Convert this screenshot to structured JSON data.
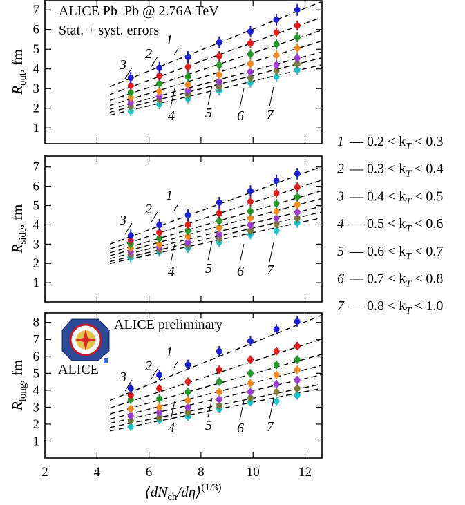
{
  "chart_data": [
    {
      "type": "scatter",
      "ylabel": [
        "R",
        "out",
        ", fm"
      ],
      "annotations": [
        "ALICE Pb–Pb @ 2.76A TeV",
        "Stat. + syst. errors"
      ],
      "xlim": [
        2,
        12.65
      ],
      "xticks": [
        2,
        4,
        6,
        8,
        10,
        12
      ],
      "ylim": [
        0.2,
        7.5
      ],
      "yticks": [
        1,
        2,
        3,
        4,
        5,
        6,
        7
      ],
      "x": [
        5.3,
        6.4,
        7.5,
        8.7,
        9.9,
        10.9,
        11.7
      ],
      "fit_x": [
        4.5,
        12.6
      ],
      "series": [
        {
          "label": "1",
          "name": [
            "— 0.2 < k",
            "T",
            " < 0.3"
          ],
          "color": "#1f1fd6",
          "values": [
            3.55,
            4.05,
            4.6,
            5.35,
            5.9,
            6.5,
            7.0
          ],
          "errors": [
            0.3,
            0.3,
            0.3,
            0.3,
            0.3,
            0.3,
            0.3
          ],
          "fit": [
            3.1,
            7.4
          ]
        },
        {
          "label": "2",
          "name": [
            "— 0.3 < k",
            "T",
            " < 0.4"
          ],
          "color": "#e01b1b",
          "values": [
            3.15,
            3.65,
            4.1,
            4.65,
            5.3,
            5.85,
            6.2
          ],
          "errors": [
            0.25,
            0.25,
            0.25,
            0.25,
            0.25,
            0.25,
            0.25
          ],
          "fit": [
            2.7,
            6.6
          ]
        },
        {
          "label": "3",
          "name": [
            "— 0.4 < k",
            "T",
            " < 0.5"
          ],
          "color": "#22992a",
          "values": [
            2.8,
            3.25,
            3.6,
            4.2,
            4.75,
            5.25,
            5.6
          ],
          "errors": [
            0.25,
            0.25,
            0.25,
            0.25,
            0.25,
            0.25,
            0.25
          ],
          "fit": [
            2.4,
            5.95
          ]
        },
        {
          "label": "4",
          "name": [
            "— 0.5 < k",
            "T",
            " < 0.6"
          ],
          "color": "#f28a1d",
          "values": [
            2.55,
            2.85,
            3.2,
            3.7,
            4.25,
            4.7,
            5.05
          ],
          "errors": [
            0.25,
            0.25,
            0.25,
            0.25,
            0.25,
            0.25,
            0.25
          ],
          "fit": [
            2.15,
            5.4
          ]
        },
        {
          "label": "5",
          "name": [
            "— 0.6 < k",
            "T",
            " < 0.7"
          ],
          "color": "#9a3ed6",
          "values": [
            2.3,
            2.6,
            2.9,
            3.35,
            3.85,
            4.2,
            4.55
          ],
          "errors": [
            0.25,
            0.25,
            0.25,
            0.25,
            0.25,
            0.25,
            0.25
          ],
          "fit": [
            1.95,
            4.85
          ]
        },
        {
          "label": "6",
          "name": [
            "— 0.7 < k",
            "T",
            " < 0.8"
          ],
          "color": "#7a7a3a",
          "values": [
            2.1,
            2.45,
            2.7,
            3.1,
            3.55,
            3.9,
            4.25
          ],
          "errors": [
            0.25,
            0.25,
            0.25,
            0.25,
            0.25,
            0.25,
            0.25
          ],
          "fit": [
            1.8,
            4.55
          ]
        },
        {
          "label": "7",
          "name": [
            "— 0.8 < k",
            "T",
            " < 1.0"
          ],
          "color": "#1cc4c8",
          "values": [
            1.85,
            2.2,
            2.5,
            2.9,
            3.3,
            3.6,
            3.95
          ],
          "errors": [
            0.25,
            0.25,
            0.25,
            0.25,
            0.25,
            0.25,
            0.25
          ],
          "fit": [
            1.65,
            4.2
          ]
        }
      ]
    },
    {
      "type": "scatter",
      "ylabel": [
        "R",
        "side",
        ", fm"
      ],
      "xlim": [
        2,
        12.65
      ],
      "xticks": [
        2,
        4,
        6,
        8,
        10,
        12
      ],
      "ylim": [
        0,
        7.6
      ],
      "yticks": [
        1,
        2,
        3,
        4,
        5,
        6,
        7
      ],
      "x": [
        5.3,
        6.4,
        7.5,
        8.7,
        9.9,
        10.9,
        11.7
      ],
      "fit_x": [
        4.5,
        12.6
      ],
      "series": [
        {
          "label": "1",
          "color": "#1f1fd6",
          "values": [
            3.45,
            4.0,
            4.5,
            5.15,
            5.75,
            6.3,
            6.65
          ],
          "errors": [
            0.3,
            0.3,
            0.3,
            0.3,
            0.3,
            0.3,
            0.3
          ],
          "fit": [
            3.0,
            7.0
          ]
        },
        {
          "label": "2",
          "color": "#e01b1b",
          "values": [
            3.2,
            3.6,
            4.0,
            4.6,
            5.2,
            5.65,
            5.95
          ],
          "errors": [
            0.25,
            0.25,
            0.25,
            0.25,
            0.25,
            0.25,
            0.25
          ],
          "fit": [
            2.75,
            6.3
          ]
        },
        {
          "label": "3",
          "color": "#22992a",
          "values": [
            3.0,
            3.3,
            3.7,
            4.2,
            4.7,
            5.1,
            5.45
          ],
          "errors": [
            0.25,
            0.25,
            0.25,
            0.25,
            0.25,
            0.25,
            0.25
          ],
          "fit": [
            2.55,
            5.75
          ]
        },
        {
          "label": "4",
          "color": "#f28a1d",
          "values": [
            2.8,
            3.0,
            3.4,
            3.85,
            4.35,
            4.7,
            5.05
          ],
          "errors": [
            0.25,
            0.25,
            0.25,
            0.25,
            0.25,
            0.25,
            0.25
          ],
          "fit": [
            2.4,
            5.35
          ]
        },
        {
          "label": "5",
          "color": "#9a3ed6",
          "values": [
            2.6,
            2.85,
            3.1,
            3.5,
            4.0,
            4.35,
            4.65
          ],
          "errors": [
            0.25,
            0.25,
            0.25,
            0.25,
            0.25,
            0.25,
            0.25
          ],
          "fit": [
            2.25,
            4.95
          ]
        },
        {
          "label": "6",
          "color": "#7a7a3a",
          "values": [
            2.45,
            2.7,
            2.95,
            3.3,
            3.7,
            4.05,
            4.35
          ],
          "errors": [
            0.25,
            0.25,
            0.25,
            0.25,
            0.25,
            0.25,
            0.25
          ],
          "fit": [
            2.1,
            4.65
          ]
        },
        {
          "label": "7",
          "color": "#1cc4c8",
          "values": [
            2.3,
            2.6,
            2.8,
            3.1,
            3.5,
            3.7,
            4.1
          ],
          "errors": [
            0.25,
            0.25,
            0.25,
            0.25,
            0.25,
            0.25,
            0.25
          ],
          "fit": [
            2.0,
            4.35
          ]
        }
      ]
    },
    {
      "type": "scatter",
      "ylabel": [
        "R",
        "long",
        ", fm"
      ],
      "xlabel": [
        "⟨dN",
        "ch",
        "/dη⟩",
        "(1/3)"
      ],
      "annotations": [
        "ALICE preliminary",
        "ALICE"
      ],
      "xlim": [
        2,
        12.65
      ],
      "xticks": [
        2,
        4,
        6,
        8,
        10,
        12
      ],
      "ylim": [
        0,
        8.6
      ],
      "yticks": [
        1,
        2,
        3,
        4,
        5,
        6,
        7,
        8
      ],
      "x": [
        5.3,
        6.4,
        7.5,
        8.7,
        9.9,
        10.9,
        11.7
      ],
      "fit_x": [
        4.5,
        12.6
      ],
      "series": [
        {
          "label": "1",
          "color": "#1f1fd6",
          "values": [
            4.1,
            4.9,
            5.5,
            6.3,
            6.9,
            7.6,
            8.05
          ],
          "errors": [
            0.3,
            0.3,
            0.3,
            0.3,
            0.3,
            0.3,
            0.3
          ],
          "fit": [
            3.4,
            8.4
          ]
        },
        {
          "label": "2",
          "color": "#e01b1b",
          "values": [
            3.7,
            4.1,
            4.5,
            5.2,
            5.8,
            6.3,
            6.6
          ],
          "errors": [
            0.25,
            0.25,
            0.25,
            0.25,
            0.25,
            0.25,
            0.25
          ],
          "fit": [
            2.95,
            7.0
          ]
        },
        {
          "label": "3",
          "color": "#22992a",
          "values": [
            3.45,
            3.5,
            3.9,
            4.5,
            5.0,
            5.5,
            5.8
          ],
          "errors": [
            0.25,
            0.25,
            0.25,
            0.25,
            0.25,
            0.25,
            0.25
          ],
          "fit": [
            2.6,
            6.1
          ]
        },
        {
          "label": "4",
          "color": "#f28a1d",
          "values": [
            2.9,
            3.0,
            3.4,
            3.9,
            4.4,
            4.9,
            5.2
          ],
          "errors": [
            0.25,
            0.25,
            0.25,
            0.25,
            0.25,
            0.25,
            0.25
          ],
          "fit": [
            2.3,
            5.45
          ]
        },
        {
          "label": "5",
          "color": "#9a3ed6",
          "values": [
            2.5,
            2.7,
            3.0,
            3.45,
            3.9,
            4.35,
            4.6
          ],
          "errors": [
            0.25,
            0.25,
            0.25,
            0.25,
            0.25,
            0.25,
            0.25
          ],
          "fit": [
            2.05,
            4.9
          ]
        },
        {
          "label": "6",
          "color": "#7a7a3a",
          "values": [
            2.2,
            2.4,
            2.7,
            3.1,
            3.55,
            3.9,
            4.1
          ],
          "errors": [
            0.25,
            0.25,
            0.25,
            0.25,
            0.25,
            0.25,
            0.25
          ],
          "fit": [
            1.8,
            4.35
          ]
        },
        {
          "label": "7",
          "color": "#1cc4c8",
          "values": [
            1.85,
            2.25,
            2.45,
            2.9,
            3.3,
            3.35,
            3.7
          ],
          "errors": [
            0.25,
            0.25,
            0.25,
            0.25,
            0.25,
            0.25,
            0.25
          ],
          "fit": [
            1.6,
            4.1
          ]
        }
      ]
    }
  ]
}
